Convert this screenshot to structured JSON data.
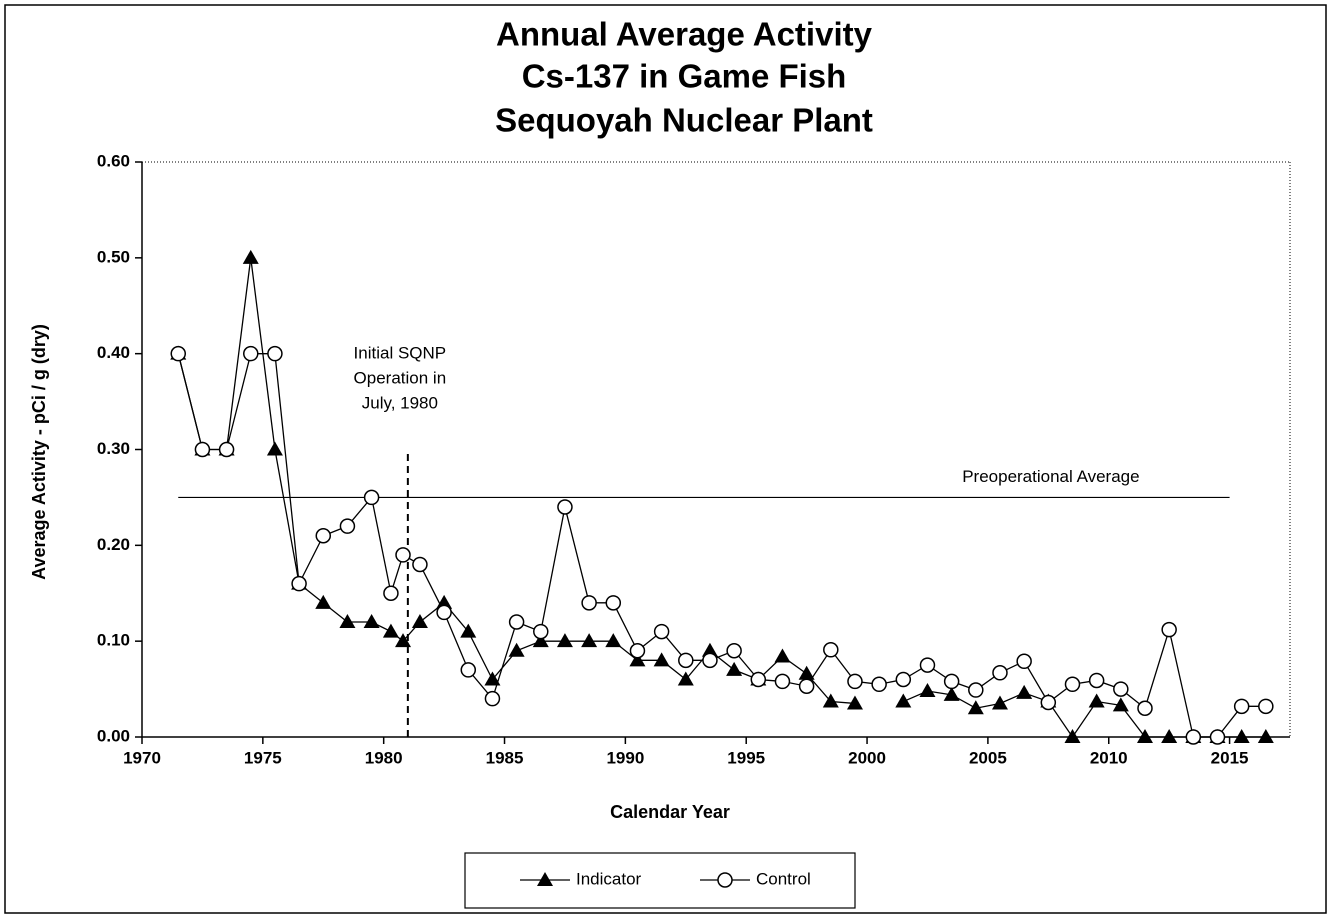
{
  "chart_data": {
    "type": "line",
    "title": [
      "Annual Average Activity",
      "Cs-137 in Game Fish",
      "Sequoyah Nuclear Plant"
    ],
    "x_label": "Calendar Year",
    "y_label": "Average Activity  - pCi / g (dry)",
    "xlim": [
      1970,
      2017.5
    ],
    "ylim": [
      0,
      0.6
    ],
    "xticks": [
      1970,
      1975,
      1980,
      1985,
      1990,
      1995,
      2000,
      2005,
      2010,
      2015
    ],
    "yticks": [
      {
        "value": 0,
        "label": "0.00"
      },
      {
        "value": 0.1,
        "label": "0.10"
      },
      {
        "value": 0.2,
        "label": "0.20"
      },
      {
        "value": 0.3,
        "label": "0.30"
      },
      {
        "value": 0.4,
        "label": "0.40"
      },
      {
        "value": 0.5,
        "label": "0.50"
      },
      {
        "value": 0.6,
        "label": "0.60"
      }
    ],
    "x": [
      1971.5,
      1972.5,
      1973.5,
      1974.5,
      1975.5,
      1976.5,
      1977.5,
      1978.5,
      1979.5,
      1980.3,
      1980.8,
      1981.5,
      1982.5,
      1983.5,
      1984.5,
      1985.5,
      1986.5,
      1987.5,
      1988.5,
      1989.5,
      1990.5,
      1991.5,
      1992.5,
      1993.5,
      1994.5,
      1995.5,
      1996.5,
      1997.5,
      1998.5,
      1999.5,
      2000.5,
      2001.5,
      2002.5,
      2003.5,
      2004.5,
      2005.5,
      2006.5,
      2007.5,
      2008.5,
      2009.5,
      2010.5,
      2011.5,
      2012.5,
      2013.5,
      2014.5,
      2015.5,
      2016.5
    ],
    "series": [
      {
        "name": "Indicator",
        "marker": "triangle",
        "color": "#000000",
        "values": [
          0.4,
          0.3,
          0.3,
          0.5,
          0.3,
          0.16,
          0.14,
          0.12,
          0.12,
          0.11,
          0.1,
          0.12,
          0.14,
          0.11,
          0.06,
          0.09,
          0.1,
          0.1,
          0.1,
          0.1,
          0.08,
          0.08,
          0.06,
          0.09,
          0.07,
          0.06,
          0.084,
          0.066,
          0.037,
          0.035,
          null,
          0.037,
          0.048,
          0.044,
          0.03,
          0.035,
          0.046,
          0.037,
          0,
          0.037,
          0.033,
          0,
          0,
          0,
          0,
          0,
          0
        ]
      },
      {
        "name": "Control",
        "marker": "circle",
        "color": "#000000",
        "values": [
          0.4,
          0.3,
          0.3,
          0.4,
          0.4,
          0.16,
          0.21,
          0.22,
          0.25,
          0.15,
          0.19,
          0.18,
          0.13,
          0.07,
          0.04,
          0.12,
          0.11,
          0.24,
          0.14,
          0.14,
          0.09,
          0.11,
          0.08,
          0.08,
          0.09,
          0.06,
          0.058,
          0.053,
          0.091,
          0.058,
          0.055,
          0.06,
          0.075,
          0.058,
          0.049,
          0.067,
          0.079,
          0.036,
          0.055,
          0.059,
          0.05,
          0.03,
          0.112,
          0,
          0,
          0.032,
          0.032
        ]
      }
    ],
    "preoperational_average": {
      "label": "Preoperational Average",
      "value": 0.25,
      "x": [
        1971.5,
        2015
      ]
    },
    "operation_start": {
      "label": [
        "Initial SQNP",
        "Operation in",
        "July, 1980"
      ],
      "x": 1981,
      "y": [
        0,
        0.3
      ]
    },
    "legend": "bottom"
  }
}
